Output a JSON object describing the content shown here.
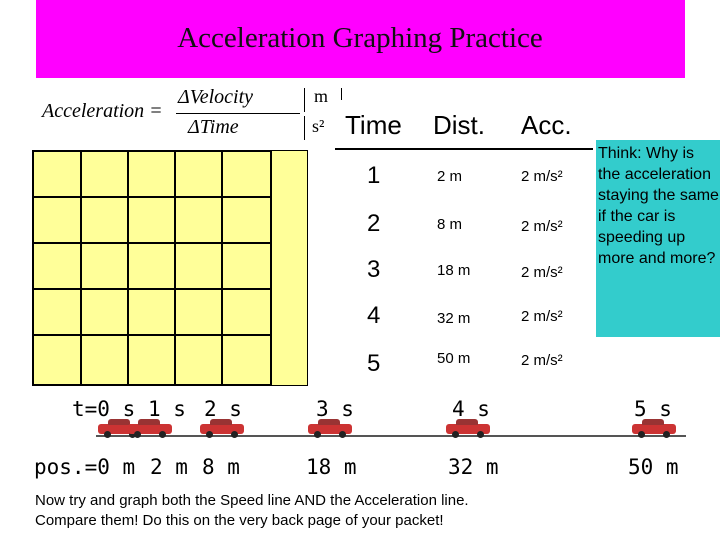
{
  "title": "Acceleration Graphing Practice",
  "formula": {
    "lhs": "Acceleration =",
    "numerator": "ΔVelocity",
    "denominator": "ΔTime",
    "unit_top": "m",
    "unit_bottom": "s²"
  },
  "table": {
    "headers": [
      "Time",
      "Dist.",
      "Acc."
    ],
    "rows": [
      {
        "time": "1",
        "dist": "2 m",
        "acc": "2 m/s²"
      },
      {
        "time": "2",
        "dist": "8 m",
        "acc": "2 m/s²"
      },
      {
        "time": "3",
        "dist": "18 m",
        "acc": "2 m/s²"
      },
      {
        "time": "4",
        "dist": "32 m",
        "acc": "2 m/s²"
      },
      {
        "time": "5",
        "dist": "50 m",
        "acc": "2 m/s²"
      }
    ]
  },
  "note": "Think: Why is the acceleration staying the same if the car is speeding up more and more?",
  "timeline": {
    "time_labels": [
      "t=0 s",
      "1 s",
      "2 s",
      "3 s",
      "4 s",
      "5 s"
    ],
    "pos_labels": [
      "pos.=0 m",
      "2 m",
      "8 m",
      "18 m",
      "32 m",
      "50 m"
    ]
  },
  "instructions": {
    "line1": "Now try and graph both the Speed line AND the Acceleration line.",
    "line2": "Compare them! Do this on the very back page of your packet!"
  }
}
